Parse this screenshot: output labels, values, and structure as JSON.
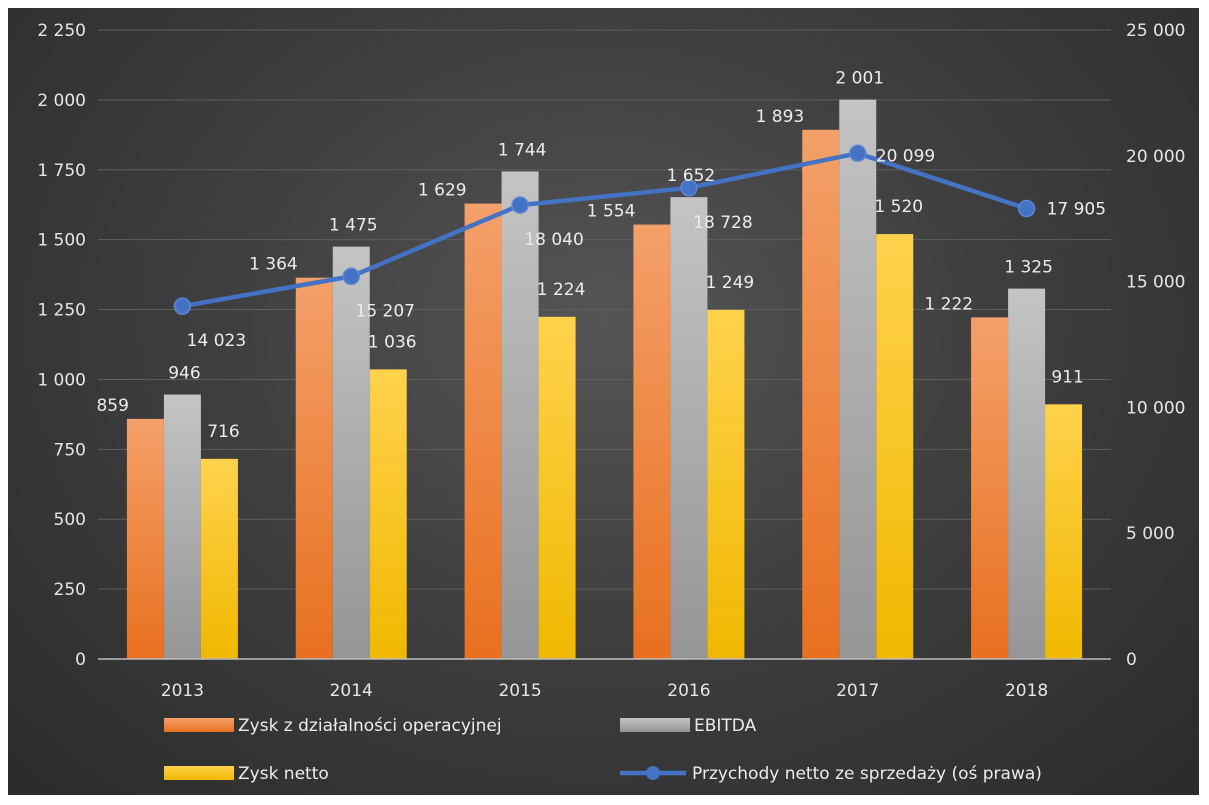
{
  "chart_data": {
    "type": "bar",
    "categories": [
      "2013",
      "2014",
      "2015",
      "2016",
      "2017",
      "2018"
    ],
    "series": [
      {
        "name": "Zysk z działalności operacyjnej",
        "type": "bar",
        "axis": "left",
        "values": [
          859,
          1364,
          1629,
          1554,
          1893,
          1222
        ],
        "labels": [
          "859",
          "1 364",
          "1 629",
          "1 554",
          "1 893",
          "1 222"
        ],
        "color": "#ed7d31"
      },
      {
        "name": "EBITDA",
        "type": "bar",
        "axis": "left",
        "values": [
          946,
          1475,
          1744,
          1652,
          2001,
          1325
        ],
        "labels": [
          "946",
          "1 475",
          "1 744",
          "1 652",
          "2 001",
          "1 325"
        ],
        "color": "#a5a5a5"
      },
      {
        "name": "Zysk netto",
        "type": "bar",
        "axis": "left",
        "values": [
          716,
          1036,
          1224,
          1249,
          1520,
          911
        ],
        "labels": [
          "716",
          "1 036",
          "1 224",
          "1 249",
          "1 520",
          "911"
        ],
        "color": "#ffc000"
      },
      {
        "name": "Przychody netto ze sprzedaży (oś prawa)",
        "type": "line",
        "axis": "right",
        "values": [
          14023,
          15207,
          18040,
          18728,
          20099,
          17905
        ],
        "labels": [
          "14 023",
          "15 207",
          "18 040",
          "18 728",
          "20 099",
          "17 905"
        ],
        "color": "#4472c4"
      }
    ],
    "y_left": {
      "min": 0,
      "max": 2250,
      "ticks": [
        0,
        250,
        500,
        750,
        1000,
        1250,
        1500,
        1750,
        2000,
        2250
      ],
      "tick_labels": [
        "0",
        "250",
        "500",
        "750",
        "1 000",
        "1 250",
        "1 500",
        "1 750",
        "2 000",
        "2 250"
      ]
    },
    "y_right": {
      "min": 0,
      "max": 25000,
      "ticks": [
        0,
        5000,
        10000,
        15000,
        20000,
        25000
      ],
      "tick_labels": [
        "0",
        "5 000",
        "10 000",
        "15 000",
        "20 000",
        "25 000"
      ]
    },
    "grid": true,
    "legend_position": "bottom"
  }
}
